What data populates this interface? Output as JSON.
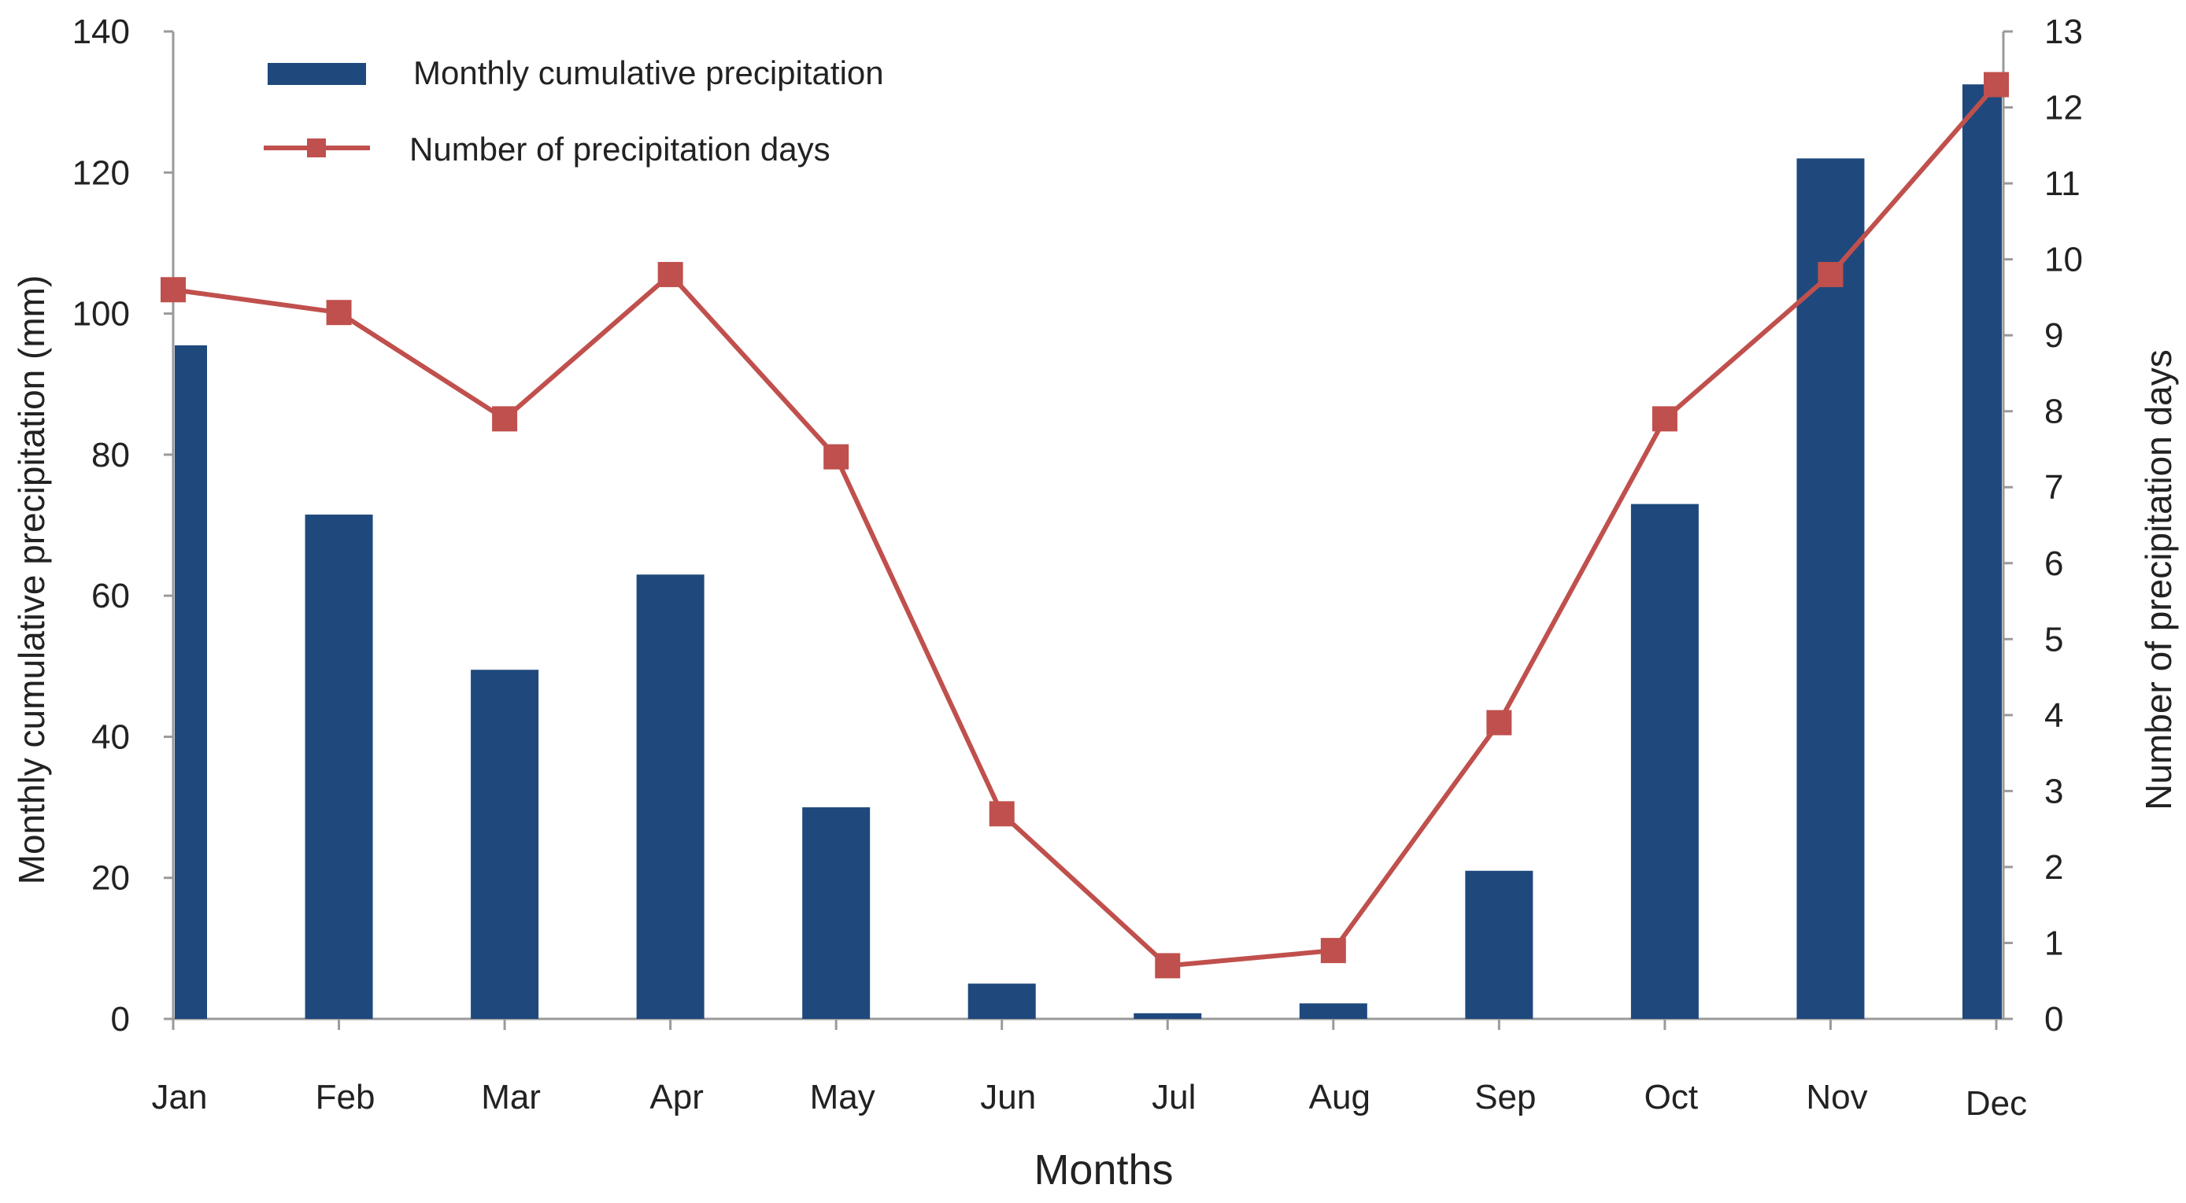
{
  "chart_data": {
    "type": "bar+line",
    "categories": [
      "Jan",
      "Feb",
      "Mar",
      "Apr",
      "May",
      "Jun",
      "Jul",
      "Aug",
      "Sep",
      "Oct",
      "Nov",
      "Dec"
    ],
    "series": [
      {
        "name": "Monthly cumulative precipitation",
        "type": "bar",
        "axis": "left",
        "color": "#1f497d",
        "values": [
          95.5,
          71.5,
          49.5,
          63,
          30,
          5,
          0.8,
          2.2,
          21,
          73,
          122,
          132.5
        ]
      },
      {
        "name": "Number of precipitation days",
        "type": "line",
        "axis": "right",
        "color": "#c0504d",
        "values": [
          9.6,
          9.3,
          7.9,
          9.8,
          7.4,
          2.7,
          0.7,
          0.9,
          3.9,
          7.9,
          9.8,
          12.3
        ]
      }
    ],
    "xlabel": "Months",
    "ylabel": "Monthly cumulative precipitation (mm)",
    "y2label": "Number of precipitation days",
    "ylim": [
      0,
      140
    ],
    "y2lim": [
      0,
      13
    ],
    "yticks": [
      "0",
      "20",
      "40",
      "60",
      "80",
      "100",
      "120",
      "140"
    ],
    "y2ticks": [
      "0",
      "1",
      "2",
      "3",
      "4",
      "5",
      "6",
      "7",
      "8",
      "9",
      "10",
      "11",
      "12",
      "13"
    ],
    "grid": false,
    "legend_position": "top-left"
  }
}
